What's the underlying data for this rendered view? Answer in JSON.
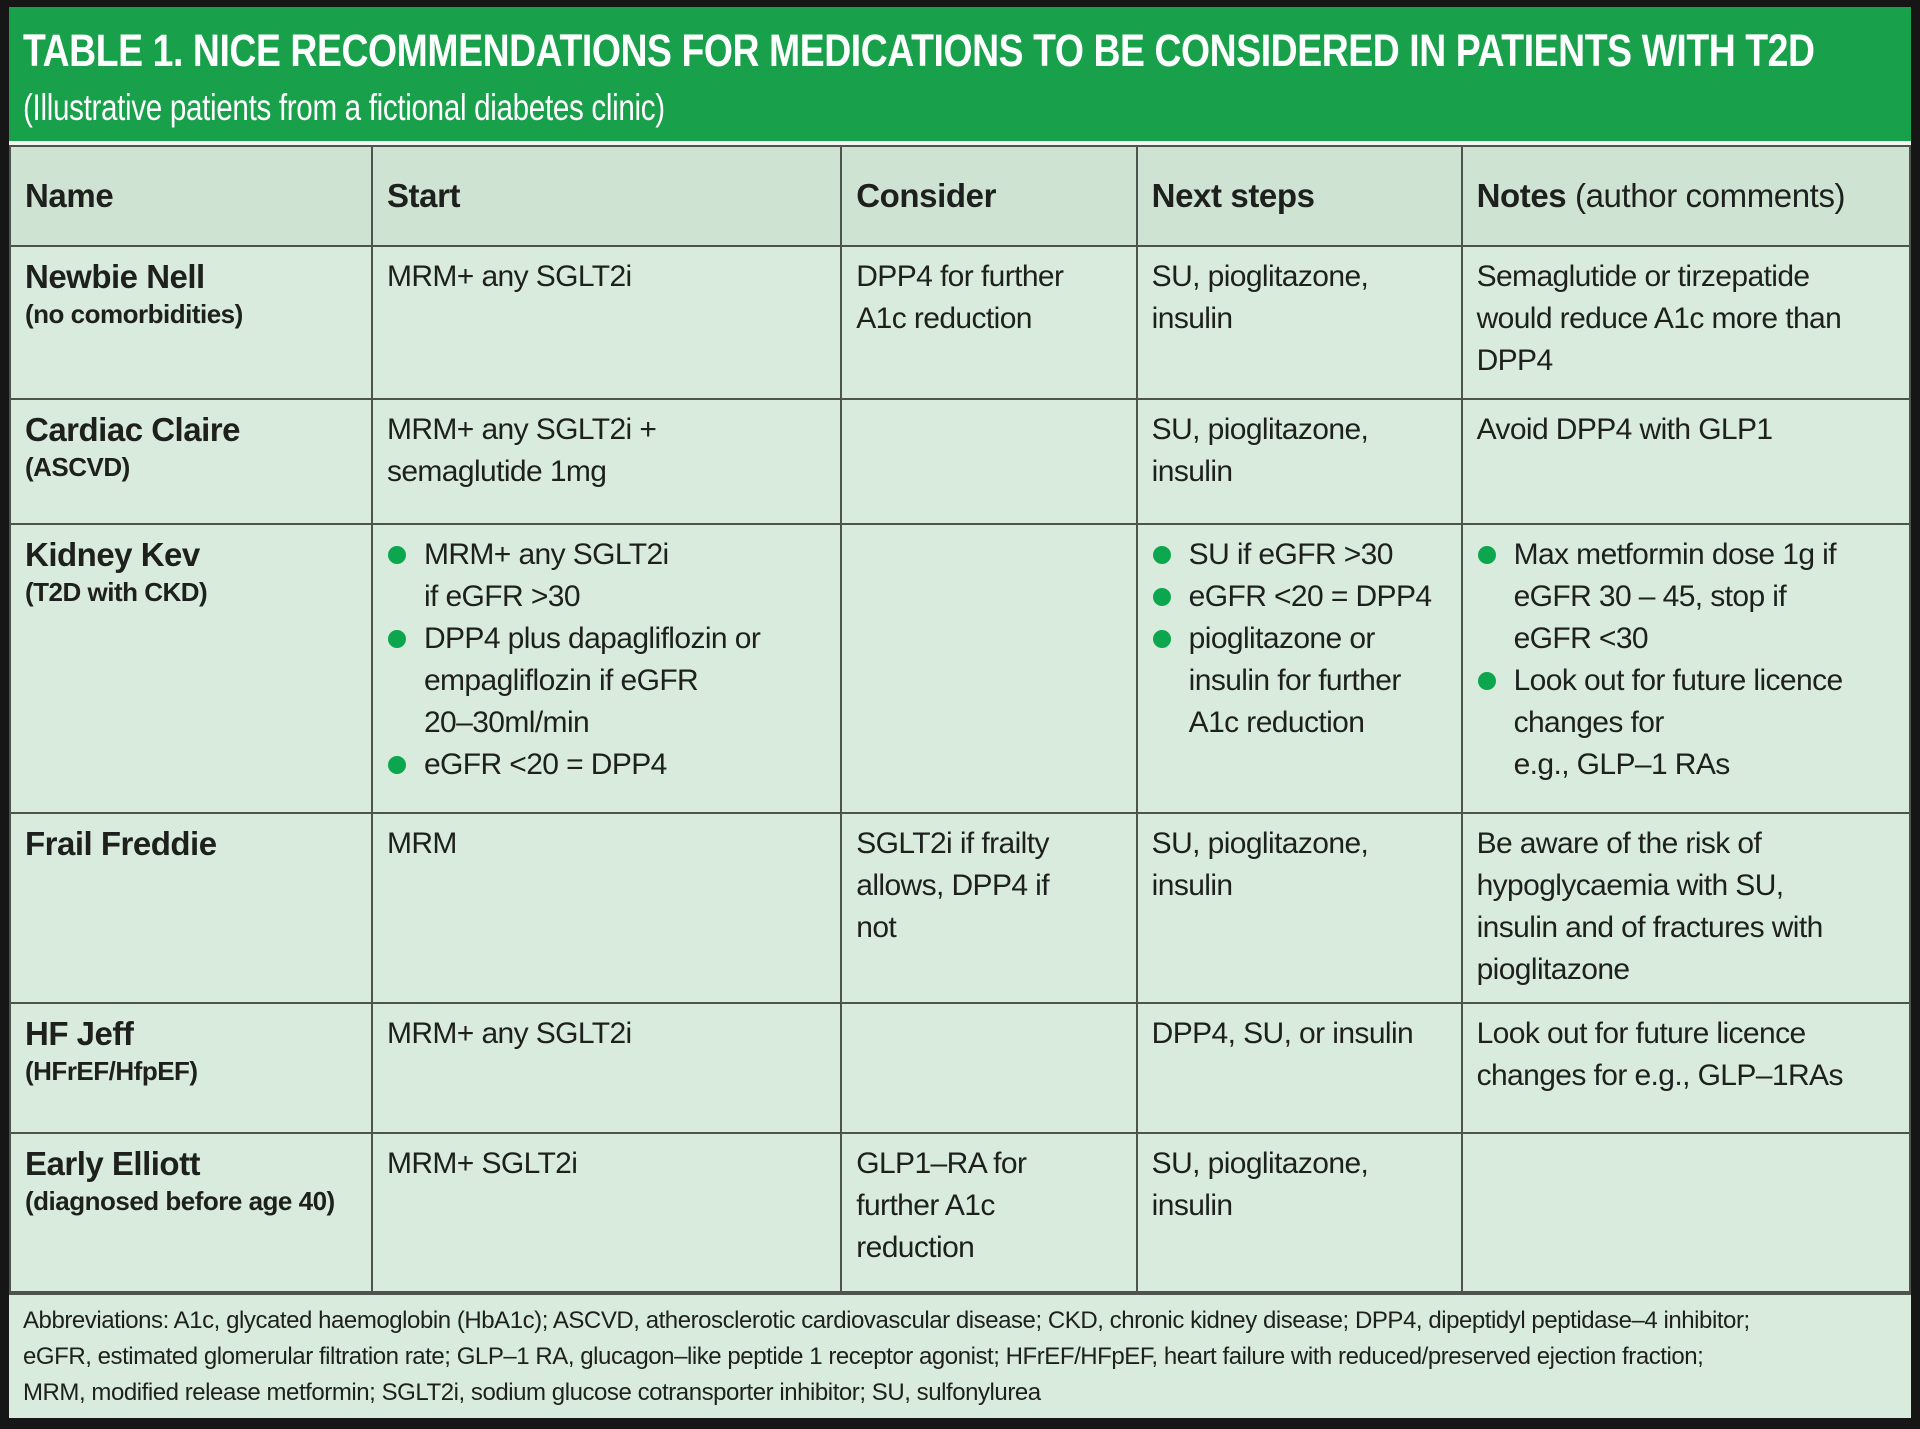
{
  "colors": {
    "banner_green": "#18A04B",
    "bullet_green": "#0CA64F",
    "header_row_bg": "#CFE3D3",
    "body_row_bg": "#D9EBDC",
    "grid_line": "#4D544E",
    "frame_black": "#161616",
    "text": "#1E201E"
  },
  "banner": {
    "title": "TABLE 1. NICE RECOMMENDATIONS FOR MEDICATIONS TO BE CONSIDERED IN PATIENTS WITH T2D",
    "subtitle": "(Illustrative patients from a fictional diabetes clinic)"
  },
  "table": {
    "header": {
      "name": "Name",
      "start": "Start",
      "consider": "Consider",
      "next_steps": "Next steps",
      "notes": "Notes",
      "notes_suffix": " (author comments)"
    },
    "rows": [
      {
        "name": "Newbie Nell",
        "qualifier": "(no comorbidities)",
        "start": {
          "text": "MRM+ any SGLT2i"
        },
        "consider": {
          "text": "DPP4 for further\nA1c reduction"
        },
        "next_steps": {
          "text": "SU, pioglitazone,\ninsulin"
        },
        "notes": {
          "text": "Semaglutide or tirzepatide\nwould reduce A1c more than\nDPP4"
        }
      },
      {
        "name": "Cardiac Claire",
        "qualifier": "(ASCVD)",
        "start": {
          "text": "MRM+ any SGLT2i +\nsemaglutide 1mg"
        },
        "consider": {
          "text": ""
        },
        "next_steps": {
          "text": "SU, pioglitazone,\ninsulin"
        },
        "notes": {
          "text": "Avoid DPP4 with GLP1"
        }
      },
      {
        "name": "Kidney Kev",
        "qualifier": "(T2D with CKD)",
        "start": {
          "bullets": [
            "MRM+ any SGLT2i\nif eGFR >30",
            "DPP4 plus dapagliflozin or\nempagliflozin if eGFR\n20–30ml/min",
            "eGFR <20 = DPP4"
          ]
        },
        "consider": {
          "text": ""
        },
        "next_steps": {
          "bullets": [
            "SU if eGFR >30",
            "eGFR <20 = DPP4",
            "pioglitazone or\ninsulin for further\nA1c reduction"
          ]
        },
        "notes": {
          "bullets": [
            "Max metformin dose 1g if\neGFR 30 – 45, stop if\neGFR <30",
            "Look out for future licence\nchanges for\ne.g., GLP–1 RAs"
          ]
        }
      },
      {
        "name": "Frail Freddie",
        "qualifier": "",
        "start": {
          "text": "MRM"
        },
        "consider": {
          "text": "SGLT2i if frailty\nallows, DPP4 if\nnot"
        },
        "next_steps": {
          "text": "SU, pioglitazone,\ninsulin"
        },
        "notes": {
          "text": "Be aware of the risk of\nhypoglycaemia with SU,\ninsulin and of fractures with\npioglitazone"
        }
      },
      {
        "name": "HF Jeff",
        "qualifier": "(HFrEF/HfpEF)",
        "start": {
          "text": "MRM+ any SGLT2i"
        },
        "consider": {
          "text": ""
        },
        "next_steps": {
          "text": "DPP4, SU, or insulin"
        },
        "notes": {
          "text": "Look out for future licence\nchanges for e.g., GLP–1RAs"
        }
      },
      {
        "name": "Early Elliott",
        "qualifier": "(diagnosed before age 40)",
        "start": {
          "text": "MRM+ SGLT2i"
        },
        "consider": {
          "text": "GLP1–RA for\nfurther A1c\nreduction"
        },
        "next_steps": {
          "text": "SU, pioglitazone,\ninsulin"
        },
        "notes": {
          "text": ""
        }
      }
    ]
  },
  "footnote": {
    "text": "Abbreviations: A1c, glycated haemoglobin (HbA1c); ASCVD, atherosclerotic cardiovascular disease; CKD, chronic kidney disease; DPP4, dipeptidyl peptidase–4 inhibitor;\neGFR, estimated glomerular filtration rate; GLP–1 RA, glucagon–like peptide 1 receptor agonist; HFrEF/HFpEF, heart failure with reduced/preserved ejection fraction;\nMRM, modified release metformin; SGLT2i, sodium glucose cotransporter inhibitor; SU, sulfonylurea"
  }
}
